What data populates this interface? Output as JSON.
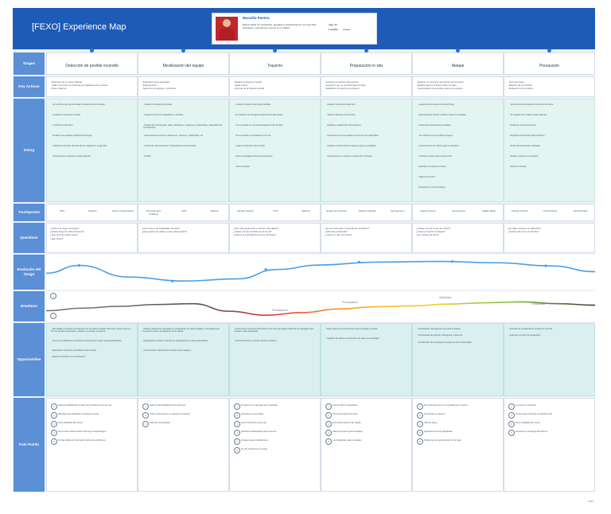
{
  "title": "[FEXO] Experience Map",
  "persona": {
    "name": "Mussilio Pereira",
    "description": "Busca saldar los obstáculos; apegado a planteamientos los incendios forestales y permanecer sereno a mi ciudad.",
    "age_label": "Age: 47",
    "age_value": "",
    "location_label": "Locality:",
    "location_value": "Urbano"
  },
  "row_labels": {
    "stages": "Stages",
    "key_actions": "Key Actions",
    "doing": "Doing",
    "touchpoints": "Touchpoints",
    "questions": "Questions",
    "risk": "Evolución del riesgo",
    "emotions": "Emotions",
    "opportunities": "Opportunities",
    "pain_points": "Pain Points"
  },
  "stages": [
    "Detección de posible incendio",
    "Movilización del equipo",
    "Trayecto",
    "Preparación in situ",
    "Ataque",
    "Precaución"
  ],
  "key_actions": [
    [
      "Detección de un punto caliente.",
      "Calibro de ocelo en la cámara de vigilancia más cercana.",
      "Aviso a alarma."
    ],
    [
      "Evaluación de la gravedad.",
      "Equipamiento.",
      "Selección de equipos y vehículos."
    ],
    [
      "Realizar el trayecto previsto.",
      "Llegar al sitio.",
      "Informar de la situación actual."
    ],
    [
      "Asegurar el espacio más próximo.",
      "Asentar lo que se necesita para el fuego.",
      "Establecer formación de extinción."
    ],
    [
      "Realizar un control de la extinción del incendio.",
      "Realizar ligeros avances sobre el fuego.",
      "Comunicación de extinción total a los equipos."
    ],
    [
      "Provocar fuego.",
      "Revisión de la extinción.",
      "Evaluación de los daños."
    ]
  ],
  "doing": [
    [
      "Se confirma que hay necesidad una alerta de de incendios.",
      "Identifica la formación incendio.",
      "Confirmar la ubicación.",
      "Realiza una evaluación preliminar del riesgo.",
      "Clasifica el incendio ubicando tipo de vegetación, riesgo vital.",
      "Determina las condiciones meteorológicas."
    ],
    [
      "Analiza su briefing del personal.",
      "Asigna el número de brigadistas y vehículos.",
      "Prepara las herramientas: palas, batefuegos, mangueras, motobombas y dispositivos de comunicación.",
      "Selecciona los vehículos: todoterreno, camiones, autobombas, etc.",
      "Prueba de comunicaciones. Comprobación de frecuencias.",
      "Partida."
    ],
    [
      "Decidir el trayecto para mayor facilidad.",
      "En situación de emergencia planea rutas alternativas.",
      "Se encuentran en una ruta despejada rumbo al lugar.",
      "Se encuentran con obstáculos en la vía.",
      "Llega a la ubicación del incendio.",
      "El jefe del brigada informa de la situación.",
      "Inicio de acción."
    ],
    [
      "Realiza una primera inspección.",
      "Valora la ubicación del incendio.",
      "Establece organización de las labores.",
      "Determina la zona de ataque con los recursos disponibles.",
      "Realiza la primera línea de ataque según la posibilidad.",
      "Se posiciona con respecto a la dirección del fuego."
    ],
    [
      "Llega a primera línea en contra al fuego.",
      "Ejecuta ataque directo o indirecto según la estrategia.",
      "Prepara las herramientas de ataque.",
      "Se coordina con los equipos de apoyo.",
      "Avanza la zona de control según la ubicación.",
      "Combate el frente activo del incendio.",
      "Establece una línea de control.",
      "Vigila el perímetro.",
      "Revisión de la zona del fuego."
    ],
    [
      "Verifica la zona del posible incendio en los focos.",
      "Se asegura de no haber puntos calientes.",
      "Evalúa la zona del perímetro.",
      "Registra la información para el informe.",
      "Retira las herramientas utilizadas.",
      "Realiza el informe del incidente.",
      "Retorno a la base."
    ]
  ],
  "touchpoints": [
    [
      "GPS",
      "Teléfono",
      "Centro meteorológico"
    ],
    [
      "Personal base (briefing)",
      "GPS",
      "Teléfono"
    ],
    [
      "Cámara externa",
      "GPS",
      "Teléfono"
    ],
    [
      "Equipo de extinción",
      "Teléfono satelital",
      "Campamento"
    ],
    [
      "Agente externo",
      "Campamento",
      "Walkie Talkie"
    ],
    [
      "Cámara externa",
      "Campamento",
      "Herramientas"
    ]
  ],
  "questions": [
    [
      "¿Cuál es el origen del fuego?",
      "¿Existe riesgo de vidas humanas?",
      "¿Qué nivel de peligro tiene?",
      "¿Hay viento?"
    ],
    [
      "¿Qué número de brigadistas necesito?",
      "¿Qué equipos de ataque tengo a disposición?"
    ],
    [
      "¿Qué ruta puede tener el acceso más rápido?",
      "¿Cuáles son las condiciones de la vía?",
      "¿Cuál es la velocidad de avance del fuego?"
    ],
    [
      "¿Se ha confirmado el incendio de actuación?",
      "¿Está todo preparado?",
      "¿Cuál es el plan de acción?"
    ],
    [
      "¿Cuáles son las zonas de control?",
      "¿Cuál es el punto de ataque?",
      "¿Se mantiene la línea?"
    ],
    [
      "¿Se debe mantener la vigilancia?",
      "¿Cuánto valor tuvo el incendio?"
    ]
  ],
  "risk_curve": {
    "points": [
      [
        0,
        0.55
      ],
      [
        0.06,
        0.2
      ],
      [
        0.15,
        0.72
      ],
      [
        0.25,
        0.9
      ],
      [
        0.35,
        0.8
      ],
      [
        0.42,
        0.38
      ],
      [
        0.5,
        0.18
      ],
      [
        0.6,
        0.05
      ],
      [
        0.72,
        0.02
      ],
      [
        0.82,
        0.08
      ],
      [
        0.92,
        0.22
      ],
      [
        1.0,
        0.48
      ]
    ]
  },
  "emotions": {
    "labels": [
      "Preocupación",
      "Preocupación",
      "Optimismo",
      "Tranquilidad"
    ],
    "values": [
      0.7,
      0.58,
      0.5,
      0.42,
      0.38,
      0.72,
      0.9,
      0.78,
      0.62,
      0.52,
      0.48,
      0.4,
      0.34,
      0.3,
      0.38,
      0.45
    ]
  },
  "opportunities": [
    [
      "Alta calidad y predicción de detección de incendios forestales para poder actuar ante eso. Uso de cámaras avanzadas y satélites conectados al sistema.",
      "Uso de una plataforma de detección temprana que integre alertas automáticas.",
      "Dispositivos móviles de identificación del incendio.",
      "Mejorar la precisión en la localización."
    ],
    [
      "Briefing: Mejorar las estrategias de visualización de mapas digitales y tecnologías que muestren la zona a la brigada de forma rápida.",
      "Equipamiento: Reducir el tiempo de equipamiento con listas automáticas.",
      "Comunicación: Garantizar la conexión de los equipos."
    ],
    [
      "Proporcionar una buena información de la ruta a la brigada. Sistemas de navegación que muestren rutas alternativas.",
      "Usar información en tiempo real de la situación."
    ],
    [
      "Mejor sistema de comunicación entre la brigada y la base.",
      "Organizar las labores de extinción con apoyo de tecnología."
    ],
    [
      "Visualización transparente de la zona de ataque.",
      "Herramientas de extinción más ligeras y eficientes.",
      "Coordinación de los equipos de ataque de forma más rápida."
    ],
    [
      "Sistemas de monitorización posterior al incendio.",
      "Detección de focos de reactivación."
    ]
  ],
  "pain_points": [
    [
      "Falta de fiabilidad de los datos del incendio en tiempo real.",
      "Dificultad para identificar la ubicación exacta.",
      "Poca visibilidad del terreno.",
      "No se tienen datos exactos del riesgo meteorológico.",
      "No hay suficiente información sobre las condiciones."
    ],
    [
      "Falta de disponibilidad de los camiones.",
      "Tarda mucho tiempo en preparar el material.",
      "Falta de comunicación."
    ],
    [
      "El trayecto es más largo de lo esperado.",
      "Carretera en mal estado.",
      "Poca información de la ruta.",
      "Vehículos inadecuados para el terreno.",
      "El fuego avanza rápidamente.",
      "No hay cobertura en el lugar."
    ],
    [
      "Terreno difícil o inaccesible.",
      "Poca información del fuego.",
      "El incendio avanza más rápido.",
      "Falta de recursos para el ataque.",
      "Los brigadistas están cansados."
    ],
    [
      "El control del fuego es complicado por el viento.",
      "El incendio se reactiva.",
      "Falta de agua.",
      "Agotamiento de los brigadistas.",
      "Problemas de comunicación con la base."
    ],
    [
      "Los focos se reactivan.",
      "No se puede confirmar la extinción total.",
      "Poca visibilidad del terreno.",
      "Demoras en la entrega del informe."
    ]
  ],
  "footer": "2024"
}
